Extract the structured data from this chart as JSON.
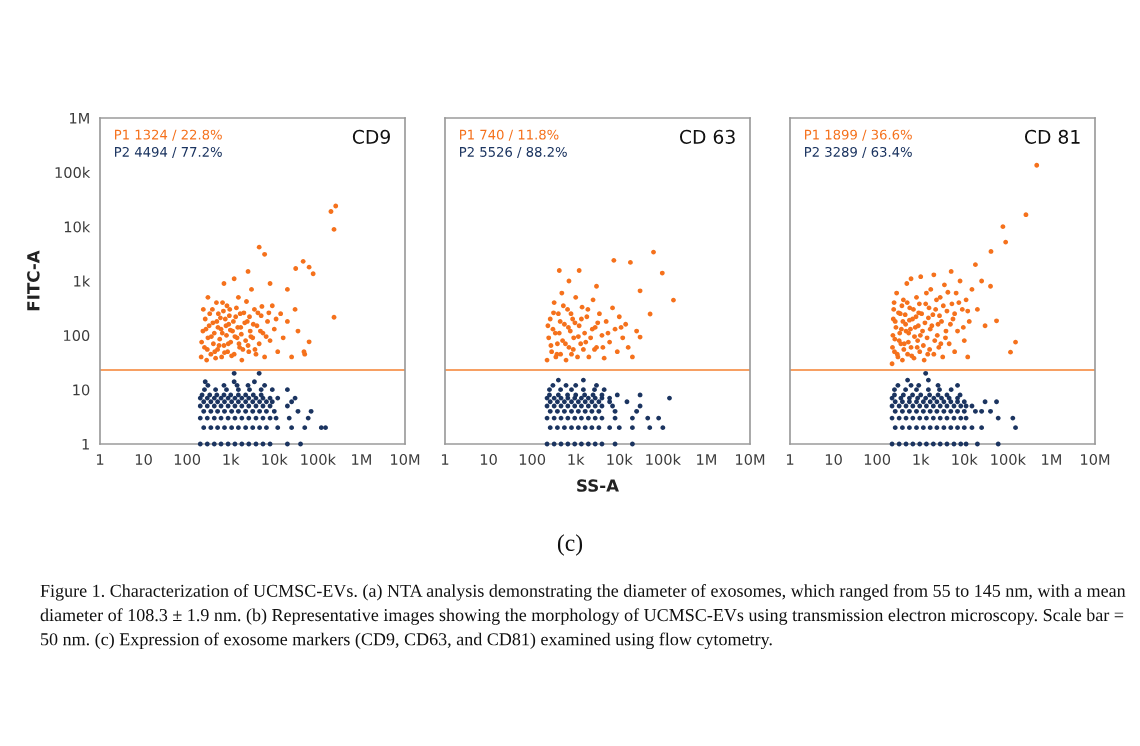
{
  "chart_data": [
    {
      "type": "scatter",
      "title": "CD9",
      "ylabel": "FITC-A",
      "log": "xy",
      "marker": "circle",
      "xlim": [
        1,
        10000000
      ],
      "ylim": [
        1,
        1000000
      ],
      "xticks": [
        1,
        10,
        100,
        {
          "value": 1000,
          "label": "1k"
        },
        {
          "value": 10000,
          "label": "10k"
        },
        {
          "value": 100000,
          "label": "100k"
        },
        {
          "value": 1000000,
          "label": "1M"
        },
        {
          "value": 10000000,
          "label": "10M"
        }
      ],
      "yticks": [
        1,
        10,
        100,
        {
          "value": 1000,
          "label": "1k"
        },
        {
          "value": 10000,
          "label": "10k"
        },
        {
          "value": 100000,
          "label": "100k"
        },
        {
          "value": 1000000,
          "label": "1M"
        }
      ],
      "ref_lines": [
        {
          "axis": "y",
          "value": 23,
          "color": "#f7a063"
        }
      ],
      "annotations": [
        "P1 1324 / 22.8%",
        "P2 4494 / 77.2%"
      ],
      "series": [
        {
          "color": "#f5711c",
          "x": [
            210,
            230,
            250,
            260,
            280,
            300,
            320,
            350,
            380,
            400,
            420,
            450,
            480,
            500,
            520,
            560,
            600,
            620,
            650,
            700,
            750,
            800,
            850,
            900,
            950,
            1000,
            1100,
            1200,
            1300,
            1400,
            1500,
            1600,
            1700,
            1800,
            2000,
            2200,
            2400,
            2600,
            2800,
            3000,
            3200,
            3500,
            3800,
            4000,
            4500,
            5000,
            5500,
            6000,
            7000,
            8000,
            9000,
            10000,
            12000,
            14000,
            16000,
            20000,
            25000,
            30000,
            35000,
            50000,
            4500,
            6000,
            200000,
            257000,
            235000,
            235000,
            46000,
            63000,
            78000,
            31000,
            63000,
            48000,
            2500,
            1200,
            8000,
            20000,
            300,
            700,
            215,
            235,
            270,
            290,
            330,
            360,
            390,
            430,
            470,
            510,
            540,
            580,
            640,
            680,
            720,
            780,
            820,
            880,
            930,
            980,
            1050,
            1150,
            1250,
            1350,
            1450,
            1550,
            1650,
            1750,
            1900,
            2100,
            2300,
            2500,
            2700,
            2900,
            3300,
            3600,
            4200,
            4800,
            5200,
            6500,
            7500,
            11000
          ],
          "values": [
            40,
            120,
            60,
            200,
            35,
            90,
            150,
            45,
            300,
            70,
            110,
            38,
            180,
            55,
            250,
            85,
            130,
            40,
            400,
            65,
            200,
            100,
            50,
            160,
            300,
            75,
            120,
            45,
            220,
            90,
            500,
            60,
            140,
            35,
            260,
            80,
            180,
            50,
            120,
            700,
            90,
            300,
            45,
            150,
            70,
            230,
            110,
            40,
            180,
            80,
            350,
            130,
            50,
            250,
            90,
            180,
            40,
            300,
            120,
            45,
            4200,
            3100,
            19000,
            24000,
            8900,
            215,
            2300,
            1800,
            1360,
            1700,
            76,
            50,
            1500,
            1100,
            900,
            700,
            500,
            900,
            75,
            300,
            130,
            55,
            250,
            95,
            170,
            50,
            400,
            140,
            65,
            210,
            110,
            280,
            48,
            150,
            350,
            70,
            230,
            125,
            42,
            180,
            95,
            320,
            140,
            70,
            250,
            105,
            55,
            170,
            420,
            65,
            220,
            95,
            160,
            55,
            260,
            120,
            340,
            95,
            260,
            200
          ]
        },
        {
          "color": "#1b3460",
          "x": [
            200,
            290,
            420,
            600,
            870,
            1250,
            1800,
            2600,
            3800,
            5500,
            8000,
            20000,
            40000,
            240,
            350,
            500,
            720,
            1050,
            1500,
            2200,
            3200,
            4600,
            6600,
            12000,
            25000,
            50000,
            120000,
            150000,
            200,
            290,
            420,
            600,
            870,
            1250,
            1800,
            2600,
            3800,
            5500,
            8000,
            11000,
            22000,
            60000,
            240,
            350,
            500,
            720,
            1050,
            1500,
            2200,
            3200,
            4600,
            6600,
            10000,
            35000,
            70000,
            200,
            290,
            420,
            600,
            870,
            1250,
            1800,
            2600,
            3800,
            5500,
            8000,
            20000,
            240,
            350,
            500,
            720,
            1050,
            1500,
            2200,
            3200,
            4600,
            6600,
            9000,
            25000,
            200,
            290,
            420,
            600,
            870,
            1250,
            1800,
            2600,
            3800,
            5500,
            8000,
            12000,
            30000,
            220,
            330,
            480,
            700,
            1000,
            1500,
            2200,
            3300,
            5000,
            250,
            450,
            800,
            1500,
            2700,
            5000,
            9000,
            20000,
            300,
            700,
            1400,
            2500,
            6000,
            260,
            1200,
            3500,
            1200,
            4500
          ],
          "values": [
            1,
            1,
            1,
            1,
            1,
            1,
            1,
            1,
            1,
            1,
            1,
            1,
            1,
            2,
            2,
            2,
            2,
            2,
            2,
            2,
            2,
            2,
            2,
            2,
            2,
            2,
            2,
            2,
            3,
            3,
            3,
            3,
            3,
            3,
            3,
            3,
            3,
            3,
            3,
            3,
            3,
            3,
            4,
            4,
            4,
            4,
            4,
            4,
            4,
            4,
            4,
            4,
            4,
            4,
            4,
            5,
            5,
            5,
            5,
            5,
            5,
            5,
            5,
            5,
            5,
            5,
            5,
            6,
            6,
            6,
            6,
            6,
            6,
            6,
            6,
            6,
            6,
            6,
            6,
            7,
            7,
            7,
            7,
            7,
            7,
            7,
            7,
            7,
            7,
            7,
            7,
            7,
            8,
            8,
            8,
            8,
            8,
            8,
            8,
            8,
            8,
            10,
            10,
            10,
            10,
            10,
            10,
            10,
            10,
            12,
            12,
            12,
            12,
            12,
            14,
            14,
            14,
            20,
            20
          ]
        }
      ]
    },
    {
      "type": "scatter",
      "title": "CD 63",
      "xlabel": "SS-A",
      "log": "xy",
      "marker": "circle",
      "xlim": [
        1,
        10000000
      ],
      "ylim": [
        1,
        1000000
      ],
      "xticks": [
        1,
        10,
        100,
        {
          "value": 1000,
          "label": "1k"
        },
        {
          "value": 10000,
          "label": "10k"
        },
        {
          "value": 100000,
          "label": "100k"
        },
        {
          "value": 1000000,
          "label": "1M"
        },
        {
          "value": 10000000,
          "label": "10M"
        }
      ],
      "yticks": [
        {
          "value": 1,
          "label": null
        },
        {
          "value": 10,
          "label": null
        },
        {
          "value": 100,
          "label": null
        },
        {
          "value": 1000,
          "label": null
        },
        {
          "value": 10000,
          "label": null
        },
        {
          "value": 100000,
          "label": null
        },
        {
          "value": 1000000,
          "label": null
        }
      ],
      "tick_labels": "x",
      "ref_lines": [
        {
          "axis": "y",
          "value": 23,
          "color": "#f7a063"
        }
      ],
      "annotations": [
        "P1 740 / 11.8%",
        "P2 5526 / 88.2%",
        "(c)",
        "Figure 1. Characterization of UCMSC-EVs. (a) NTA analysis demonstrating the diameter of exosomes, which ranged from 55 to 145 nm, with a mean diameter of 108.3 ± 1.9 nm. (b) Representative images showing the morphology of UCMSC-EVs using transmission electron microscopy. Scale bar = 50 nm. (c) Expression of exosome markers (CD9, CD63, and CD81) examined using flow cytometry."
      ],
      "series": [
        {
          "color": "#f5711c",
          "x": [
            220,
            240,
            260,
            280,
            300,
            320,
            350,
            380,
            400,
            420,
            450,
            480,
            500,
            550,
            600,
            650,
            700,
            750,
            800,
            850,
            900,
            1000,
            1100,
            1200,
            1300,
            1400,
            1500,
            1600,
            1800,
            2000,
            2200,
            2500,
            2800,
            3000,
            3500,
            4000,
            4500,
            5000,
            6000,
            7000,
            8000,
            9000,
            10000,
            12000,
            14000,
            16000,
            30000,
            51000,
            30000,
            175000,
            97000,
            61000,
            18000,
            7500,
            1200,
            420,
            20000,
            25000,
            700,
            3000,
            230,
            270,
            310,
            340,
            370,
            440,
            520,
            580,
            680,
            780,
            880,
            960,
            1150,
            1350,
            1700,
            1900,
            2400,
            2700,
            3200,
            4200,
            5500,
            11000
          ],
          "values": [
            35,
            90,
            200,
            50,
            130,
            400,
            40,
            70,
            250,
            110,
            45,
            600,
            80,
            160,
            35,
            300,
            60,
            120,
            45,
            200,
            90,
            500,
            40,
            150,
            70,
            330,
            55,
            110,
            220,
            40,
            90,
            450,
            140,
            60,
            250,
            100,
            38,
            180,
            75,
            320,
            130,
            50,
            220,
            90,
            160,
            60,
            93,
            247,
            660,
            445,
            1400,
            3400,
            2200,
            2400,
            1560,
            1560,
            40,
            120,
            1000,
            800,
            150,
            65,
            260,
            110,
            45,
            180,
            350,
            70,
            140,
            250,
            55,
            170,
            95,
            200,
            75,
            300,
            130,
            55,
            170,
            60,
            110,
            140
          ]
        },
        {
          "color": "#1b3460",
          "x": [
            220,
            320,
            460,
            660,
            950,
            1350,
            1950,
            2800,
            4000,
            8000,
            20000,
            260,
            380,
            550,
            800,
            1150,
            1650,
            2350,
            3400,
            6000,
            10000,
            20000,
            50000,
            100000,
            220,
            320,
            460,
            660,
            950,
            1350,
            1950,
            2800,
            4000,
            8000,
            20000,
            45000,
            80000,
            260,
            380,
            550,
            800,
            1150,
            1650,
            2350,
            3400,
            8000,
            25000,
            220,
            320,
            460,
            660,
            950,
            1350,
            1950,
            2800,
            4000,
            7000,
            30000,
            260,
            380,
            550,
            800,
            1150,
            1650,
            2350,
            3400,
            6000,
            15000,
            220,
            320,
            460,
            660,
            950,
            1350,
            1950,
            2800,
            4000,
            6000,
            142000,
            250,
            400,
            650,
            1000,
            1600,
            2500,
            4000,
            9000,
            30000,
            250,
            450,
            800,
            1500,
            2700,
            4500,
            300,
            600,
            1000,
            3000,
            400,
            1500
          ],
          "values": [
            1,
            1,
            1,
            1,
            1,
            1,
            1,
            1,
            1,
            1,
            1,
            2,
            2,
            2,
            2,
            2,
            2,
            2,
            2,
            2,
            2,
            2,
            2,
            2,
            3,
            3,
            3,
            3,
            3,
            3,
            3,
            3,
            3,
            3,
            3,
            3,
            3,
            4,
            4,
            4,
            4,
            4,
            4,
            4,
            4,
            4,
            4,
            5,
            5,
            5,
            5,
            5,
            5,
            5,
            5,
            5,
            5,
            5,
            6,
            6,
            6,
            6,
            6,
            6,
            6,
            6,
            6,
            6,
            7,
            7,
            7,
            7,
            7,
            7,
            7,
            7,
            7,
            7,
            7,
            8,
            8,
            8,
            8,
            8,
            8,
            8,
            8,
            8,
            10,
            10,
            10,
            10,
            10,
            10,
            12,
            12,
            12,
            12,
            15,
            15
          ]
        }
      ]
    },
    {
      "type": "scatter",
      "title": "CD 81",
      "log": "xy",
      "marker": "circle",
      "xlim": [
        1,
        10000000
      ],
      "ylim": [
        1,
        1000000
      ],
      "xticks": [
        1,
        10,
        100,
        {
          "value": 1000,
          "label": "1k"
        },
        {
          "value": 10000,
          "label": "10k"
        },
        {
          "value": 100000,
          "label": "100k"
        },
        {
          "value": 1000000,
          "label": "1M"
        },
        {
          "value": 10000000,
          "label": "10M"
        }
      ],
      "yticks": [
        {
          "value": 1,
          "label": null
        },
        {
          "value": 10,
          "label": null
        },
        {
          "value": 100,
          "label": null
        },
        {
          "value": 1000,
          "label": null
        },
        {
          "value": 10000,
          "label": null
        },
        {
          "value": 100000,
          "label": null
        },
        {
          "value": 1000000,
          "label": null
        }
      ],
      "tick_labels": "x",
      "ref_lines": [
        {
          "axis": "y",
          "value": 23,
          "color": "#f7a063"
        }
      ],
      "annotations": [
        "P1 1899 / 36.6%",
        "P2 3289 / 63.4%"
      ],
      "series": [
        {
          "color": "#f5711c",
          "x": [
            220,
            230,
            240,
            250,
            260,
            280,
            300,
            320,
            340,
            360,
            380,
            400,
            420,
            450,
            480,
            500,
            530,
            560,
            600,
            650,
            700,
            750,
            800,
            850,
            900,
            950,
            1000,
            1100,
            1200,
            1300,
            1400,
            1500,
            1600,
            1700,
            1800,
            2000,
            2200,
            2400,
            2600,
            2800,
            3000,
            3200,
            3500,
            3800,
            4000,
            4500,
            5000,
            5500,
            6000,
            6500,
            7000,
            8000,
            9000,
            10000,
            11000,
            13000,
            15000,
            18000,
            20000,
            25000,
            30000,
            41000,
            55000,
            150000,
            115000,
            77000,
            89000,
            260000,
            460000,
            40000,
            12000,
            2000,
            600,
            225,
            235,
            245,
            255,
            270,
            290,
            310,
            330,
            350,
            370,
            390,
            410,
            440,
            460,
            490,
            520,
            550,
            580,
            620,
            680,
            720,
            780,
            830,
            880,
            930,
            980,
            1050,
            1150,
            1250,
            1350,
            1450,
            1550,
            1650,
            1900,
            2100,
            2300,
            2500,
            2700,
            2900,
            3300,
            3700,
            4200,
            4800,
            5200,
            6000,
            7500,
            9500,
            12000
          ],
          "values": [
            30,
            100,
            300,
            50,
            180,
            600,
            40,
            80,
            250,
            130,
            35,
            450,
            70,
            160,
            900,
            45,
            110,
            320,
            60,
            200,
            38,
            140,
            500,
            80,
            260,
            50,
            1200,
            120,
            35,
            380,
            90,
            210,
            55,
            700,
            150,
            45,
            300,
            100,
            60,
            500,
            180,
            40,
            850,
            120,
            280,
            70,
            1500,
            200,
            50,
            600,
            120,
            1000,
            300,
            80,
            450,
            180,
            700,
            2000,
            300,
            1000,
            150,
            3500,
            185,
            75,
            49,
            10000,
            5200,
            16600,
            135000,
            800,
            40,
            1300,
            1100,
            60,
            200,
            400,
            85,
            140,
            45,
            260,
            110,
            70,
            350,
            180,
            55,
            240,
            120,
            400,
            75,
            190,
            130,
            42,
            300,
            95,
            220,
            60,
            150,
            380,
            100,
            250,
            65,
            170,
            600,
            45,
            320,
            130,
            240,
            80,
            450,
            160,
            230,
            70,
            350,
            90,
            620,
            160,
            380,
            250,
            400,
            140,
            280
          ]
        },
        {
          "color": "#1b3460",
          "x": [
            220,
            320,
            460,
            660,
            950,
            1350,
            1950,
            2800,
            4000,
            5800,
            8300,
            11000,
            20000,
            60000,
            260,
            380,
            550,
            800,
            1150,
            1650,
            2350,
            3400,
            4900,
            7000,
            10000,
            15000,
            25000,
            150000,
            220,
            320,
            460,
            660,
            950,
            1350,
            1950,
            2800,
            4000,
            5800,
            8300,
            11000,
            60000,
            130000,
            260,
            380,
            550,
            800,
            1150,
            1650,
            2350,
            3400,
            4900,
            7000,
            10000,
            18000,
            25000,
            40000,
            220,
            320,
            460,
            660,
            950,
            1350,
            1950,
            2800,
            4000,
            5800,
            8300,
            11000,
            15000,
            260,
            380,
            550,
            800,
            1150,
            1650,
            2350,
            3400,
            4900,
            7000,
            10000,
            30000,
            55000,
            220,
            350,
            550,
            850,
            1300,
            2000,
            3000,
            4500,
            7000,
            250,
            400,
            650,
            1000,
            1600,
            2500,
            4000,
            8000,
            250,
            450,
            800,
            1500,
            2700,
            5000,
            300,
            600,
            900,
            2500,
            7000,
            500,
            1500,
            1300
          ],
          "values": [
            1,
            1,
            1,
            1,
            1,
            1,
            1,
            1,
            1,
            1,
            1,
            1,
            1,
            1,
            2,
            2,
            2,
            2,
            2,
            2,
            2,
            2,
            2,
            2,
            2,
            2,
            2,
            2,
            3,
            3,
            3,
            3,
            3,
            3,
            3,
            3,
            3,
            3,
            3,
            3,
            3,
            3,
            4,
            4,
            4,
            4,
            4,
            4,
            4,
            4,
            4,
            4,
            4,
            4,
            4,
            4,
            5,
            5,
            5,
            5,
            5,
            5,
            5,
            5,
            5,
            5,
            5,
            5,
            5,
            6,
            6,
            6,
            6,
            6,
            6,
            6,
            6,
            6,
            6,
            6,
            6,
            6,
            7,
            7,
            7,
            7,
            7,
            7,
            7,
            7,
            7,
            8,
            8,
            8,
            8,
            8,
            8,
            8,
            8,
            10,
            10,
            10,
            10,
            10,
            10,
            12,
            12,
            12,
            12,
            12,
            15,
            15,
            20
          ]
        }
      ]
    }
  ]
}
